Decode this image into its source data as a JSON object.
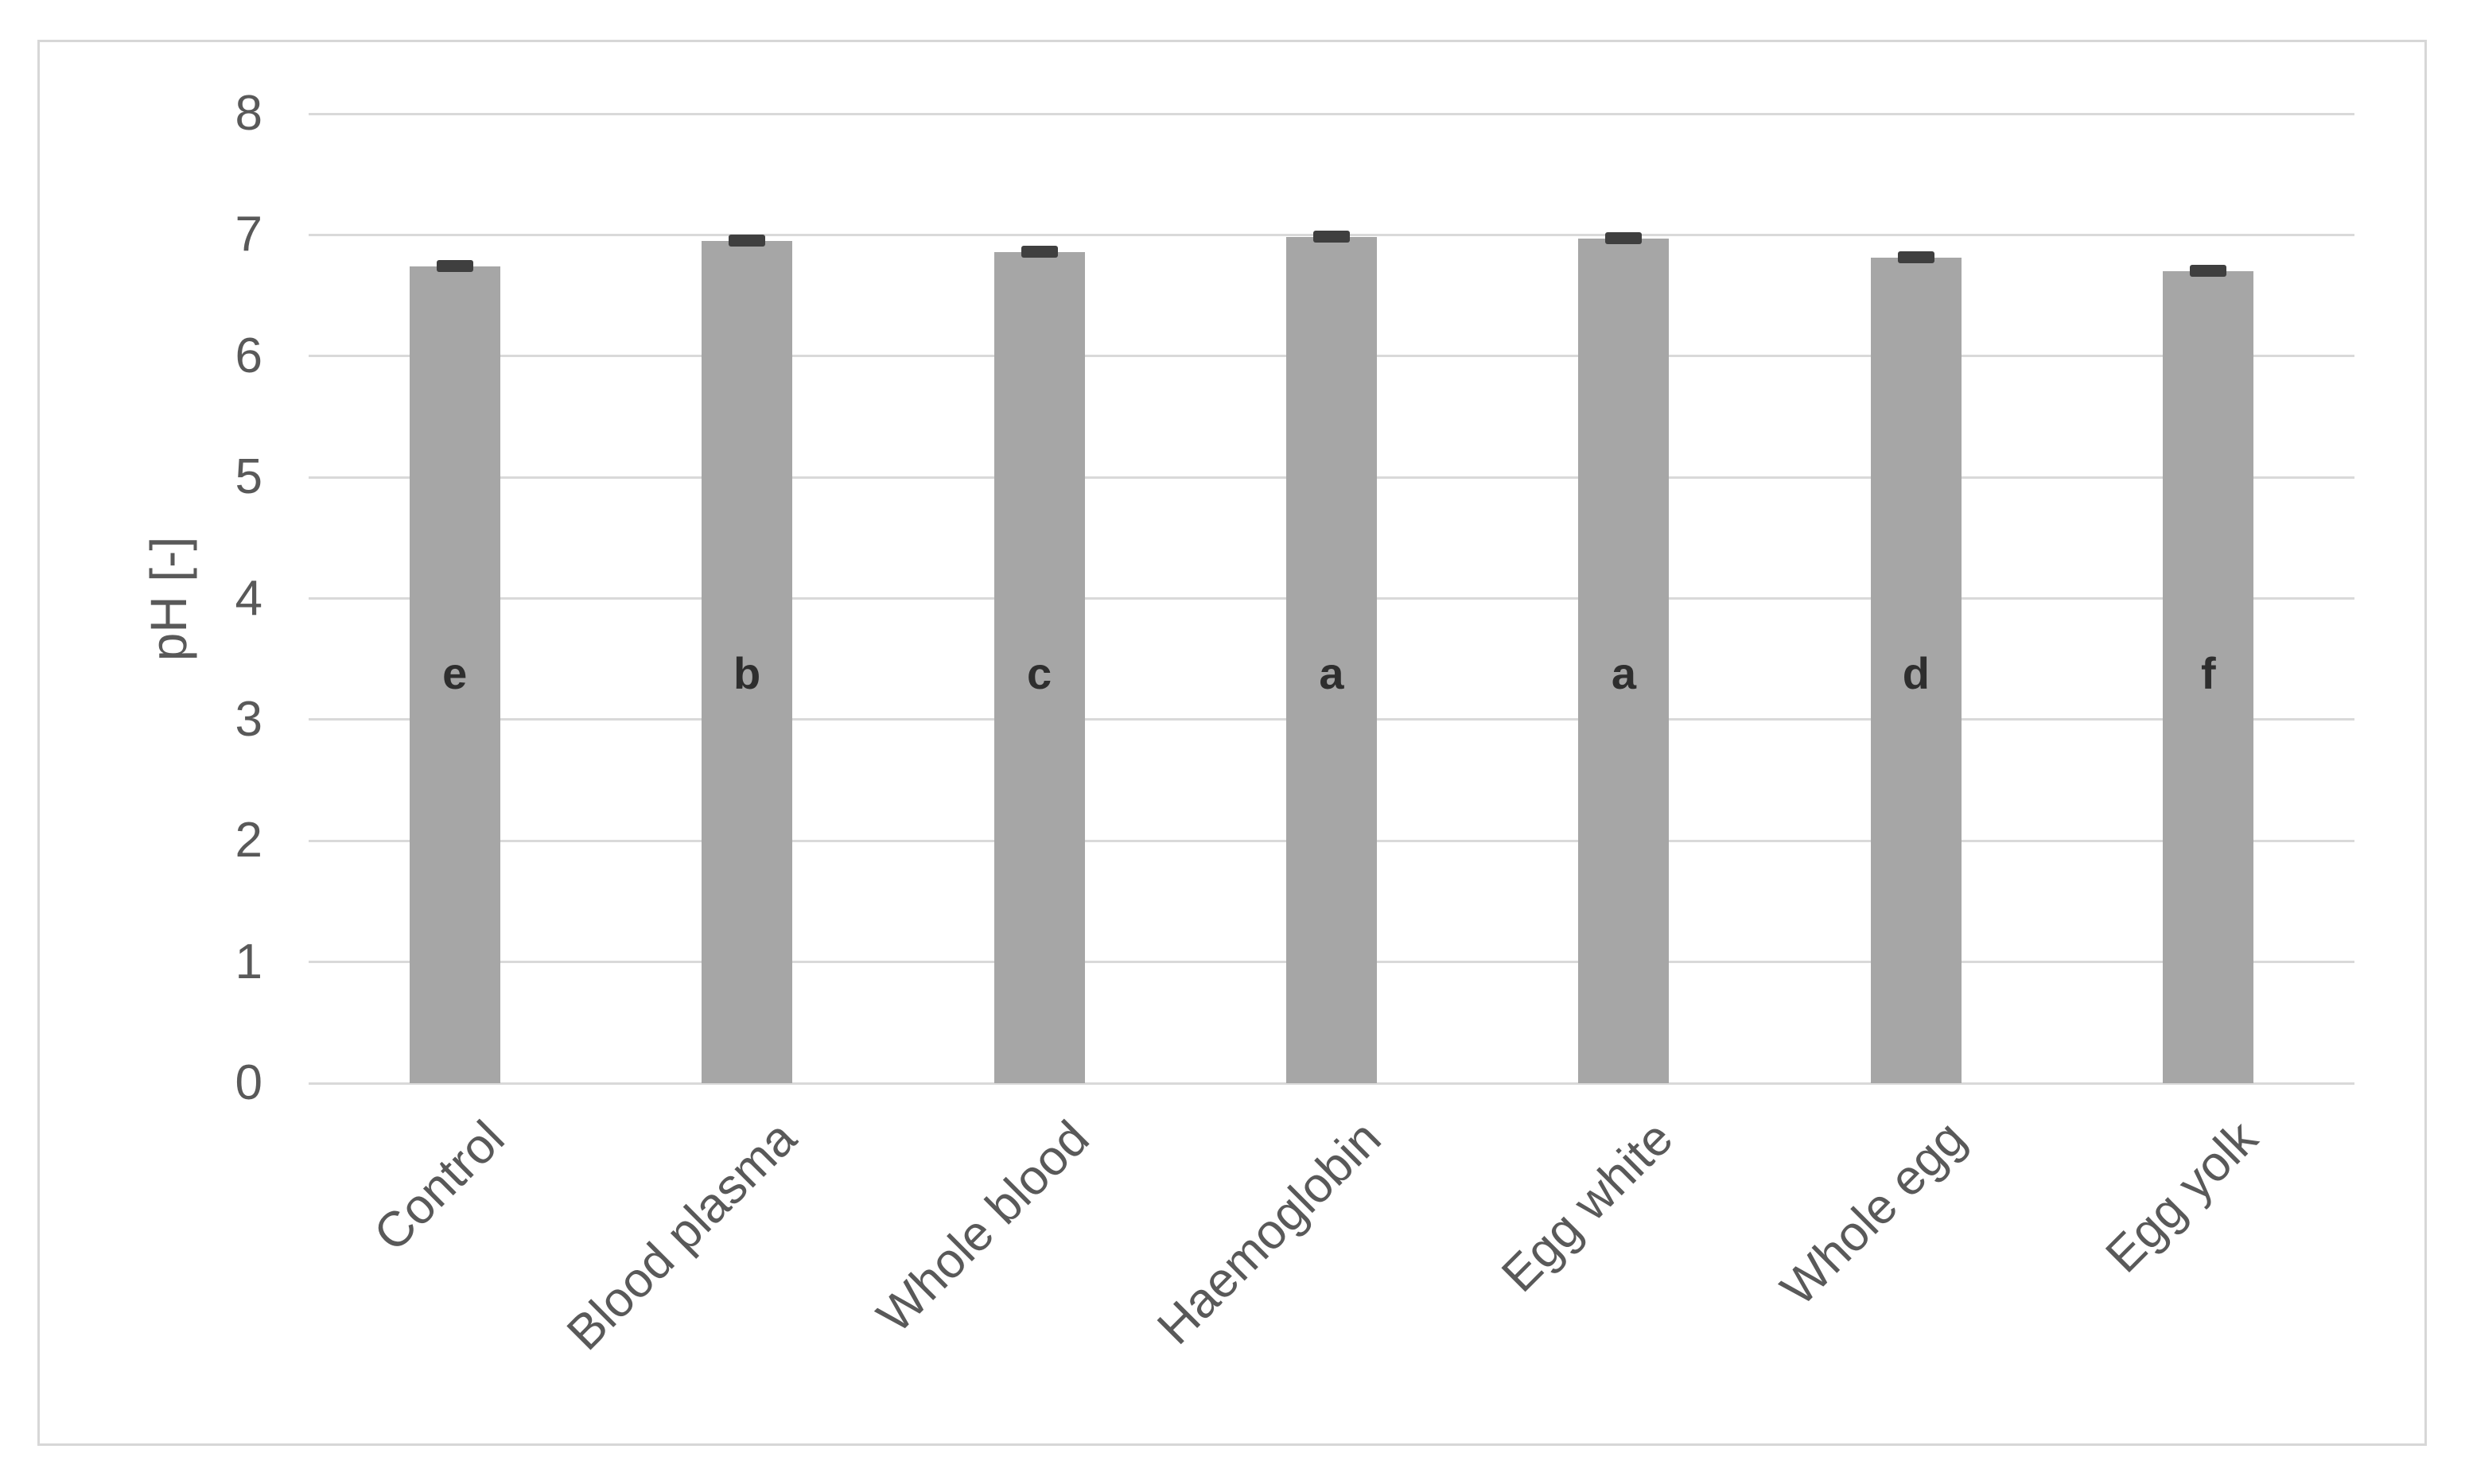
{
  "chart_data": {
    "type": "bar",
    "title": "",
    "xlabel": "",
    "ylabel": "pH [-]",
    "ylim": [
      0,
      8
    ],
    "yticks": [
      0,
      1,
      2,
      3,
      4,
      5,
      6,
      7,
      8
    ],
    "grid": true,
    "legend": false,
    "categories": [
      "Control",
      "Blood plasma",
      "Whole blood",
      "Haemoglobin",
      "Egg white",
      "Whole egg",
      "Egg yolk"
    ],
    "values": [
      6.74,
      6.95,
      6.86,
      6.98,
      6.97,
      6.81,
      6.7
    ],
    "errors": [
      0.03,
      0.03,
      0.03,
      0.03,
      0.03,
      0.03,
      0.03
    ],
    "significance_letters": [
      "e",
      "b",
      "c",
      "a",
      "a",
      "d",
      "f"
    ],
    "colors": {
      "bar": "#a6a6a6",
      "error_bar": "#3f3f3f",
      "gridline": "#d9d9d9",
      "axis_text": "#595959",
      "letter": "#2e2e2e",
      "frame_border": "#d7d7d7",
      "background": "#ffffff"
    }
  }
}
